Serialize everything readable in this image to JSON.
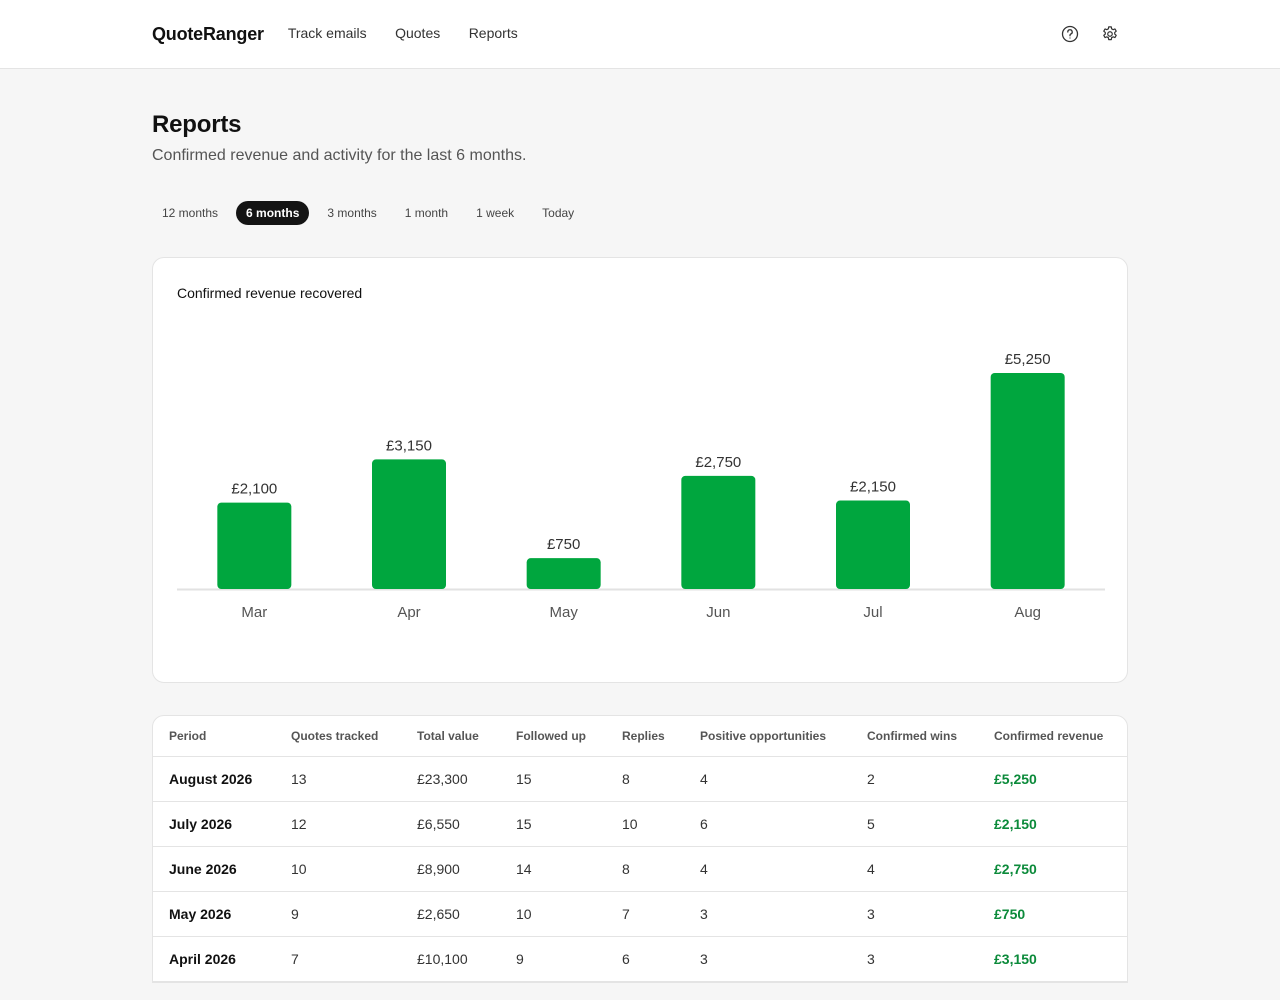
{
  "app": {
    "brand": "QuoteRanger"
  },
  "nav": [
    {
      "label": "Track emails"
    },
    {
      "label": "Quotes"
    },
    {
      "label": "Reports"
    }
  ],
  "icons": {
    "help": "help-circle-icon",
    "settings": "gear-icon"
  },
  "page": {
    "title": "Reports",
    "subtitle": "Confirmed revenue and activity for the last 6 months."
  },
  "ranges": [
    {
      "label": "12 months",
      "active": false
    },
    {
      "label": "6 months",
      "active": true
    },
    {
      "label": "3 months",
      "active": false
    },
    {
      "label": "1 month",
      "active": false
    },
    {
      "label": "1 week",
      "active": false
    },
    {
      "label": "Today",
      "active": false
    }
  ],
  "colors": {
    "bar": "#00a63e",
    "revenue_text": "#0b8a3a",
    "active_pill": "#141414"
  },
  "chart_data": {
    "type": "bar",
    "title": "Confirmed revenue recovered",
    "categories": [
      "Mar",
      "Apr",
      "May",
      "Jun",
      "Jul",
      "Aug"
    ],
    "values": [
      2100,
      3150,
      750,
      2750,
      2150,
      5250
    ],
    "value_labels": [
      "£2,100",
      "£3,150",
      "£750",
      "£2,750",
      "£2,150",
      "£5,250"
    ],
    "ylim": [
      0,
      5250
    ],
    "grid": false,
    "xlabel": "",
    "ylabel": ""
  },
  "table": {
    "headers": [
      "Period",
      "Quotes tracked",
      "Total value",
      "Followed up",
      "Replies",
      "Positive opportunities",
      "Confirmed wins",
      "Confirmed revenue"
    ],
    "rows": [
      [
        "August 2026",
        "13",
        "£23,300",
        "15",
        "8",
        "4",
        "2",
        "£5,250"
      ],
      [
        "July 2026",
        "12",
        "£6,550",
        "15",
        "10",
        "6",
        "5",
        "£2,150"
      ],
      [
        "June 2026",
        "10",
        "£8,900",
        "14",
        "8",
        "4",
        "4",
        "£2,750"
      ],
      [
        "May 2026",
        "9",
        "£2,650",
        "10",
        "7",
        "3",
        "3",
        "£750"
      ],
      [
        "April 2026",
        "7",
        "£10,100",
        "9",
        "6",
        "3",
        "3",
        "£3,150"
      ]
    ]
  }
}
